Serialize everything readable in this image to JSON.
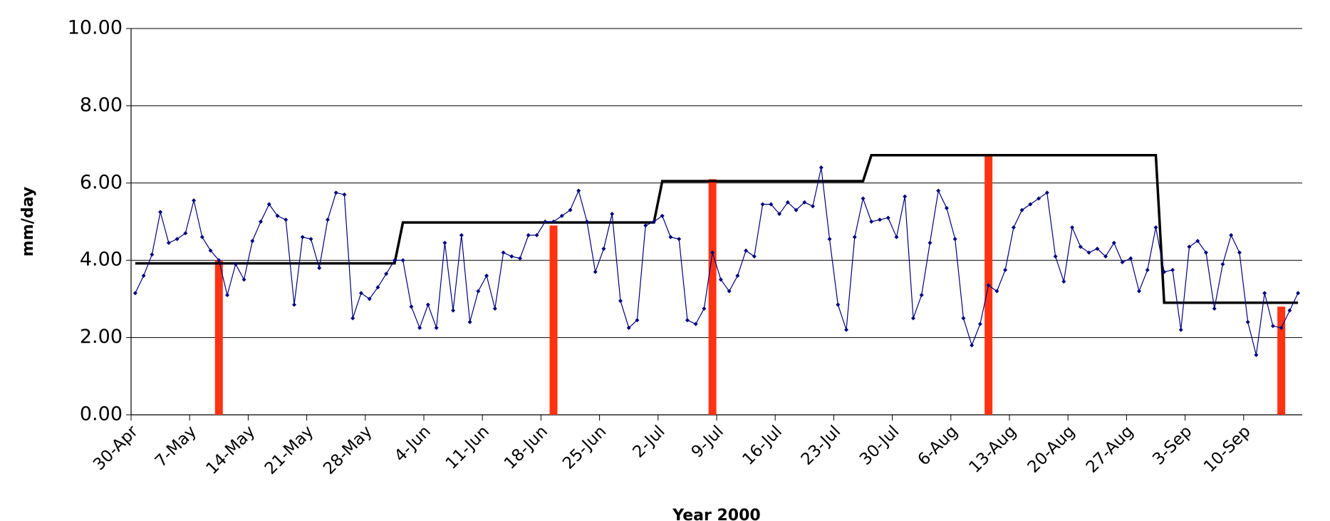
{
  "chart_data": {
    "type": "line",
    "y_label": "mm/day",
    "x_label": "Year 2000",
    "categories": [
      "30-Apr",
      null,
      null,
      null,
      null,
      null,
      null,
      "7-May",
      null,
      null,
      null,
      null,
      null,
      null,
      "14-May",
      null,
      null,
      null,
      null,
      null,
      null,
      "21-May",
      null,
      null,
      null,
      null,
      null,
      null,
      "28-May",
      null,
      null,
      null,
      null,
      null,
      null,
      "4-Jun",
      null,
      null,
      null,
      null,
      null,
      null,
      "11-Jun",
      null,
      null,
      null,
      null,
      null,
      null,
      "18-Jun",
      null,
      null,
      null,
      null,
      null,
      null,
      "25-Jun",
      null,
      null,
      null,
      null,
      null,
      null,
      "2-Jul",
      null,
      null,
      null,
      null,
      null,
      null,
      "9-Jul",
      null,
      null,
      null,
      null,
      null,
      null,
      "16-Jul",
      null,
      null,
      null,
      null,
      null,
      null,
      "23-Jul",
      null,
      null,
      null,
      null,
      null,
      null,
      "30-Jul",
      null,
      null,
      null,
      null,
      null,
      null,
      "6-Aug",
      null,
      null,
      null,
      null,
      null,
      null,
      "13-Aug",
      null,
      null,
      null,
      null,
      null,
      null,
      "20-Aug",
      null,
      null,
      null,
      null,
      null,
      null,
      "27-Aug",
      null,
      null,
      null,
      null,
      null,
      null,
      "3-Sep",
      null,
      null,
      null,
      null,
      null,
      null,
      "10-Sep",
      null,
      null,
      null,
      null,
      null,
      null
    ],
    "series": [
      {
        "type": "bar",
        "color": "#ff3311",
        "values": [
          null,
          null,
          null,
          null,
          null,
          null,
          null,
          null,
          null,
          null,
          4.0,
          null,
          null,
          null,
          null,
          null,
          null,
          null,
          null,
          null,
          null,
          null,
          null,
          null,
          null,
          null,
          null,
          null,
          null,
          null,
          null,
          null,
          null,
          null,
          null,
          null,
          null,
          null,
          null,
          null,
          null,
          null,
          null,
          null,
          null,
          null,
          null,
          null,
          null,
          null,
          4.9,
          null,
          null,
          null,
          null,
          null,
          null,
          null,
          null,
          null,
          null,
          null,
          null,
          null,
          null,
          null,
          null,
          null,
          null,
          6.1,
          null,
          null,
          null,
          null,
          null,
          null,
          null,
          null,
          null,
          null,
          null,
          null,
          null,
          null,
          null,
          null,
          null,
          null,
          null,
          null,
          null,
          null,
          null,
          null,
          null,
          null,
          null,
          null,
          null,
          null,
          null,
          null,
          6.7,
          null,
          null,
          null,
          null,
          null,
          null,
          null,
          null,
          null,
          null,
          null,
          null,
          null,
          null,
          null,
          null,
          null,
          null,
          null,
          null,
          null,
          null,
          null,
          null,
          null,
          null,
          null,
          null,
          null,
          null,
          null,
          null,
          null,
          null,
          2.8,
          null,
          null
        ]
      },
      {
        "type": "line",
        "color": "#000000",
        "markers": false,
        "values": [
          3.92,
          3.92,
          3.92,
          3.92,
          3.92,
          3.92,
          3.92,
          3.92,
          3.92,
          3.92,
          3.92,
          3.92,
          3.92,
          3.92,
          3.92,
          3.92,
          3.92,
          3.92,
          3.92,
          3.92,
          3.92,
          3.92,
          3.92,
          3.92,
          3.92,
          3.92,
          3.92,
          3.92,
          3.92,
          3.92,
          3.92,
          3.92,
          4.98,
          4.98,
          4.98,
          4.98,
          4.98,
          4.98,
          4.98,
          4.98,
          4.98,
          4.98,
          4.98,
          4.98,
          4.98,
          4.98,
          4.98,
          4.98,
          4.98,
          4.98,
          4.98,
          4.98,
          4.98,
          4.98,
          4.98,
          4.98,
          4.98,
          4.98,
          4.98,
          4.98,
          4.98,
          4.98,
          4.98,
          6.05,
          6.05,
          6.05,
          6.05,
          6.05,
          6.05,
          6.05,
          6.05,
          6.05,
          6.05,
          6.05,
          6.05,
          6.05,
          6.05,
          6.05,
          6.05,
          6.05,
          6.05,
          6.05,
          6.05,
          6.05,
          6.05,
          6.05,
          6.05,
          6.05,
          6.72,
          6.72,
          6.72,
          6.72,
          6.72,
          6.72,
          6.72,
          6.72,
          6.72,
          6.72,
          6.72,
          6.72,
          6.72,
          6.72,
          6.72,
          6.72,
          6.72,
          6.72,
          6.72,
          6.72,
          6.72,
          6.72,
          6.72,
          6.72,
          6.72,
          6.72,
          6.72,
          6.72,
          6.72,
          6.72,
          6.72,
          6.72,
          6.72,
          6.72,
          6.72,
          2.9,
          2.9,
          2.9,
          2.9,
          2.9,
          2.9,
          2.9,
          2.9,
          2.9,
          2.9,
          2.9,
          2.9,
          2.9,
          2.9,
          2.9,
          2.9,
          2.9
        ]
      },
      {
        "type": "line",
        "color": "#000080",
        "markers": true,
        "values": [
          3.15,
          3.6,
          4.15,
          5.25,
          4.45,
          4.55,
          4.7,
          5.55,
          4.6,
          4.25,
          4.0,
          3.1,
          3.9,
          3.5,
          4.5,
          5.0,
          5.45,
          5.15,
          5.05,
          2.85,
          4.6,
          4.55,
          3.8,
          5.05,
          5.75,
          5.7,
          2.5,
          3.15,
          3.0,
          3.3,
          3.65,
          4.0,
          4.0,
          2.8,
          2.25,
          2.85,
          2.25,
          4.45,
          2.7,
          4.65,
          2.4,
          3.2,
          3.6,
          2.75,
          4.2,
          4.1,
          4.05,
          4.65,
          4.65,
          5.0,
          5.0,
          5.15,
          5.3,
          5.8,
          5.0,
          3.7,
          4.3,
          5.2,
          2.95,
          2.25,
          2.45,
          4.9,
          5.0,
          5.15,
          4.6,
          4.55,
          2.45,
          2.35,
          2.75,
          4.2,
          3.5,
          3.2,
          3.6,
          4.25,
          4.1,
          5.45,
          5.45,
          5.2,
          5.5,
          5.3,
          5.5,
          5.4,
          6.4,
          4.55,
          2.85,
          2.2,
          4.6,
          5.6,
          5.0,
          5.05,
          5.1,
          4.6,
          5.65,
          2.5,
          3.1,
          4.45,
          5.8,
          5.35,
          4.55,
          2.5,
          1.8,
          2.35,
          3.35,
          3.2,
          3.75,
          4.85,
          5.3,
          5.45,
          5.6,
          5.75,
          4.1,
          3.45,
          4.85,
          4.35,
          4.2,
          4.3,
          4.1,
          4.45,
          3.95,
          4.05,
          3.2,
          3.75,
          4.85,
          3.7,
          3.75,
          2.2,
          4.35,
          4.5,
          4.2,
          2.75,
          3.9,
          4.65,
          4.2,
          2.4,
          1.55,
          3.15,
          2.3,
          2.25,
          2.7,
          3.15
        ]
      }
    ],
    "ylim": [
      0,
      10
    ],
    "yticks": [
      {
        "value": 0,
        "label": "0.00"
      },
      {
        "value": 2,
        "label": "2.00"
      },
      {
        "value": 4,
        "label": "4.00"
      },
      {
        "value": 6,
        "label": "6.00"
      },
      {
        "value": 8,
        "label": "8.00"
      },
      {
        "value": 10,
        "label": "10.00"
      }
    ],
    "grid": true
  }
}
